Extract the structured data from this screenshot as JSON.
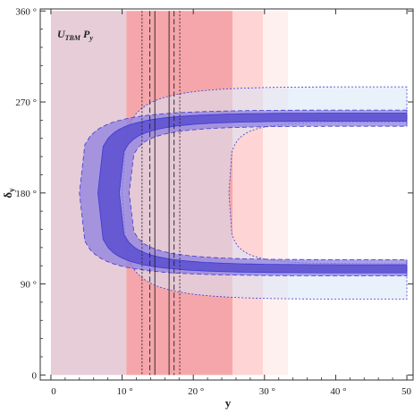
{
  "chart_data": {
    "type": "area",
    "title": "",
    "annotation": {
      "main": "U",
      "sub": "TBM",
      "tail": " P",
      "tail_sub": "y"
    },
    "xlabel": "y",
    "ylabel": "δ",
    "ylabel_sub": "y",
    "xlim": [
      -1.5,
      51
    ],
    "ylim": [
      -5,
      362
    ],
    "x_ticks": [
      0,
      10,
      20,
      30,
      40,
      50
    ],
    "x_tick_labels": [
      "0",
      "10 °",
      "20 °",
      "30 °",
      "40 °",
      "50 °"
    ],
    "y_ticks": [
      0,
      90,
      180,
      270,
      360
    ],
    "y_tick_labels": [
      "0",
      "90 °",
      "180 °",
      "270 °",
      "360 °"
    ],
    "grid": false,
    "colors": {
      "band_inner": "#5a4fd0",
      "band_mid": "#8f7fe0",
      "band_outer": "#d7e5f7",
      "band_edge": "#3b3bd1",
      "mauve": "#e6cdd8",
      "red_dark": "#ffa8a8",
      "red_light": "#ffd4d4",
      "red_faint": "#fff0f0"
    },
    "vertical_bands": [
      {
        "name": "1sigma",
        "x": [
          10.6,
          25.5
        ]
      },
      {
        "name": "2sigma",
        "x": [
          25.5,
          29.8
        ]
      },
      {
        "name": "3sigma",
        "x": [
          29.8,
          33.3
        ]
      }
    ],
    "mauve_region_x": [
      0,
      10.6
    ],
    "vertical_lines": [
      {
        "x": 14.6,
        "style": "solid"
      },
      {
        "x": 16.6,
        "style": "solid"
      },
      {
        "x": 13.9,
        "style": "dashed"
      },
      {
        "x": 17.3,
        "style": "dashed"
      },
      {
        "x": 12.8,
        "style": "dotted"
      },
      {
        "x": 18.1,
        "style": "dotted"
      }
    ],
    "curve_regions": [
      {
        "name": "3sigma",
        "vertex_y": 10,
        "upper_asymptote": [
          250,
          285
        ],
        "lower_asymptote": [
          75,
          110
        ]
      },
      {
        "name": "2sigma",
        "vertex_y": 4,
        "upper_asymptote": [
          246,
          262
        ],
        "lower_asymptote": [
          98,
          114
        ]
      },
      {
        "name": "1sigma",
        "vertex_y": 6.6,
        "upper_asymptote": [
          251,
          259
        ],
        "lower_asymptote": [
          101,
          109
        ]
      }
    ]
  }
}
